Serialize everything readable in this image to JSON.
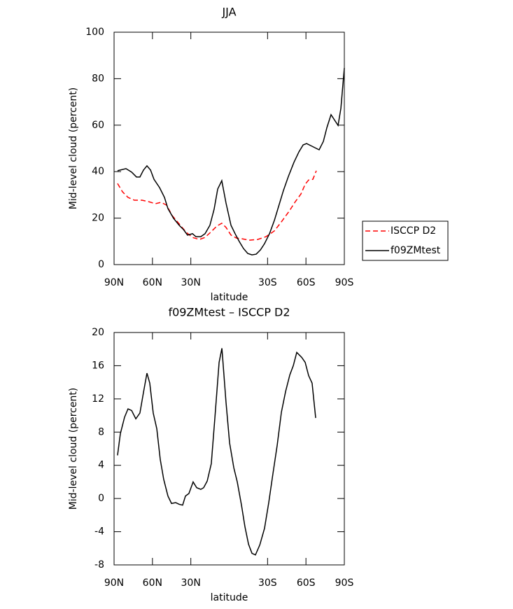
{
  "chart_data": [
    {
      "type": "line",
      "title": "JJA",
      "xlabel": "latitude",
      "ylabel": "Mid-level cloud (percent)",
      "xlim": [
        90,
        -90
      ],
      "xticks": [
        {
          "value": 90,
          "label": "90N"
        },
        {
          "value": 60,
          "label": "60N"
        },
        {
          "value": 30,
          "label": "30N"
        },
        {
          "value": -30,
          "label": "30S"
        },
        {
          "value": -60,
          "label": "60S"
        },
        {
          "value": -90,
          "label": "90S"
        }
      ],
      "ylim": [
        0,
        100
      ],
      "yticks": [
        0,
        20,
        40,
        60,
        80,
        100
      ],
      "legend": "right",
      "series": [
        {
          "name": "ISCCP D2",
          "color": "#ff0000",
          "dashed": true,
          "x": [
            87.3,
            83.4,
            79.1,
            74.1,
            68.1,
            63.2,
            57.7,
            53.3,
            49.0,
            44.6,
            39.1,
            33.6,
            28.7,
            23.3,
            18.9,
            14.0,
            9.6,
            5.8,
            2.5,
            -1.4,
            -5.7,
            -10.1,
            -15.6,
            -22.2,
            -28.7,
            -35.3,
            -40.8,
            -46.8,
            -51.7,
            -56.1,
            -59.4,
            -62.1,
            -65.4,
            -68.1
          ],
          "values": [
            34.9,
            31.3,
            28.9,
            27.7,
            27.7,
            27.1,
            26.2,
            26.8,
            25.6,
            21.1,
            17.5,
            13.9,
            11.7,
            10.8,
            11.7,
            14.2,
            16.6,
            17.8,
            16.0,
            12.7,
            11.4,
            11.1,
            10.5,
            10.8,
            12.0,
            14.5,
            18.4,
            22.9,
            27.1,
            30.4,
            34.6,
            36.4,
            36.7,
            40.4
          ]
        },
        {
          "name": "f09ZMtest",
          "color": "#000000",
          "dashed": false,
          "x": [
            87.3,
            80.7,
            76.3,
            72.5,
            69.8,
            67.0,
            64.3,
            61.5,
            58.8,
            54.4,
            50.6,
            47.9,
            43.5,
            39.1,
            35.8,
            32.6,
            28.7,
            26.0,
            22.2,
            18.9,
            15.1,
            11.8,
            9.0,
            5.8,
            2.5,
            -1.4,
            -4.6,
            -7.9,
            -11.2,
            -14.5,
            -17.8,
            -21.1,
            -24.4,
            -27.6,
            -31.5,
            -35.3,
            -38.6,
            -42.4,
            -46.3,
            -50.6,
            -54.5,
            -57.8,
            -60.5,
            -64.8,
            -70.3,
            -73.6,
            -76.4,
            -79.6,
            -85.1,
            -87.3,
            -90
          ],
          "values": [
            40.4,
            41.3,
            39.8,
            37.7,
            37.7,
            40.7,
            42.5,
            40.7,
            36.7,
            33.1,
            28.9,
            24.1,
            19.9,
            16.9,
            15.1,
            12.7,
            13.3,
            12.0,
            12.0,
            13.3,
            16.9,
            23.8,
            32.5,
            36.1,
            26.5,
            16.9,
            13.3,
            9.9,
            6.9,
            4.8,
            4.2,
            4.5,
            6.3,
            9.0,
            13.3,
            19.0,
            25.0,
            31.9,
            38.0,
            44.0,
            48.5,
            51.5,
            52.1,
            50.9,
            49.4,
            53.0,
            59.0,
            64.5,
            59.9,
            67.2,
            84.6
          ]
        }
      ]
    },
    {
      "type": "line",
      "title": "f09ZMtest – ISCCP D2",
      "xlabel": "latitude",
      "ylabel": "Mid-level cloud (percent)",
      "xlim": [
        90,
        -90
      ],
      "xticks": [
        {
          "value": 90,
          "label": "90N"
        },
        {
          "value": 60,
          "label": "60N"
        },
        {
          "value": 30,
          "label": "30N"
        },
        {
          "value": -30,
          "label": "30S"
        },
        {
          "value": -60,
          "label": "60S"
        },
        {
          "value": -90,
          "label": "90S"
        }
      ],
      "ylim": [
        -8,
        20
      ],
      "yticks": [
        -8,
        -4,
        0,
        4,
        8,
        12,
        16,
        20
      ],
      "series": [
        {
          "color": "#000000",
          "dashed": false,
          "x": [
            87.3,
            85.1,
            81.8,
            79.1,
            76.3,
            73.0,
            69.8,
            67.0,
            64.3,
            62.1,
            59.4,
            56.6,
            53.9,
            51.2,
            47.9,
            45.1,
            41.8,
            39.1,
            36.4,
            34.2,
            31.5,
            28.2,
            25.4,
            22.2,
            20.0,
            17.2,
            14.0,
            11.2,
            7.9,
            5.7,
            2.5,
            -0.3,
            -3.6,
            -6.3,
            -9.6,
            -12.3,
            -15.1,
            -17.8,
            -20.5,
            -23.9,
            -27.6,
            -30.9,
            -34.2,
            -37.5,
            -40.8,
            -44.1,
            -47.4,
            -50.1,
            -52.8,
            -56.7,
            -59.4,
            -62.1,
            -64.8,
            -67.6
          ],
          "values": [
            5.2,
            7.8,
            9.8,
            10.8,
            10.6,
            9.6,
            10.3,
            12.8,
            15.1,
            13.9,
            10.3,
            8.4,
            4.7,
            2.3,
            0.3,
            -0.6,
            -0.5,
            -0.7,
            -0.8,
            0.3,
            0.6,
            2.0,
            1.3,
            1.1,
            1.3,
            2.1,
            4.2,
            9.7,
            16.4,
            18.1,
            11.6,
            6.7,
            3.7,
            2.0,
            -0.8,
            -3.4,
            -5.5,
            -6.6,
            -6.8,
            -5.6,
            -3.6,
            -0.5,
            3.0,
            6.4,
            10.4,
            12.9,
            14.9,
            16.0,
            17.6,
            17.0,
            16.4,
            14.8,
            13.9,
            9.7
          ]
        }
      ]
    }
  ]
}
